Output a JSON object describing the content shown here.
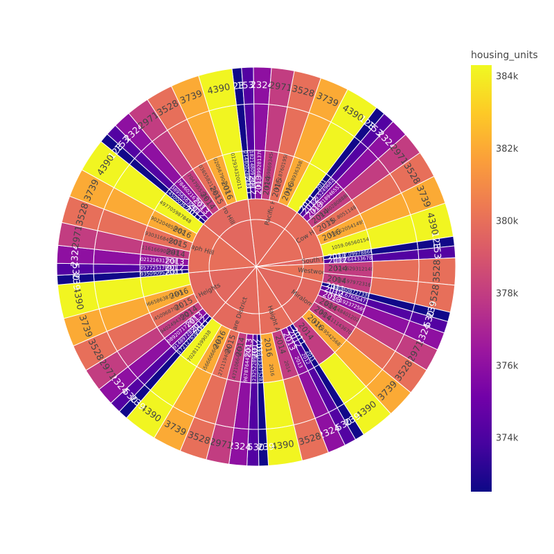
{
  "chart_data": {
    "type": "sunburst",
    "colorbar": {
      "title": "housing_units",
      "range": [
        372500,
        384300
      ],
      "ticks": [
        {
          "value": 374000,
          "label": "374k"
        },
        {
          "value": 376000,
          "label": "376k"
        },
        {
          "value": 378000,
          "label": "378k"
        },
        {
          "value": 380000,
          "label": "380k"
        },
        {
          "value": 382000,
          "label": "382k"
        },
        {
          "value": 384000,
          "label": "384k"
        }
      ],
      "colorscale": [
        "#0d0887",
        "#46039f",
        "#7201a8",
        "#9c179e",
        "#bd3786",
        "#d8576b",
        "#ed7953",
        "#fb9f3a",
        "#fdca26",
        "#f0f921"
      ]
    },
    "year_colors": {
      "2011": 372600,
      "2012": 374200,
      "2013": 376000,
      "2014": 378000,
      "2015": 380000,
      "2016": 382000,
      "extra": 384200
    },
    "outer_pattern": [
      {
        "label": "1239",
        "value": 1239,
        "color_value": 372600
      },
      {
        "label": "1530",
        "value": 1530,
        "color_value": 374200
      },
      {
        "label": "2324",
        "value": 2324,
        "color_value": 376000
      },
      {
        "label": "2971",
        "value": 2971,
        "color_value": 378000
      },
      {
        "label": "3528",
        "value": 3528,
        "color_value": 380000
      },
      {
        "label": "3739",
        "value": 3739,
        "color_value": 382000
      },
      {
        "label": "4390",
        "value": 4390,
        "color_value": 384200
      }
    ],
    "neighborhoods": [
      {
        "name": "Pacific Heights",
        "color_value": 379800,
        "outer": [
          1239,
          1530,
          2324,
          2971,
          3528,
          3739,
          4390
        ],
        "years": [
          {
            "year": "2011",
            "label": "509.0214800288178"
          },
          {
            "year": "2012",
            "label": "586.2182148097696"
          },
          {
            "year": "2013",
            "label": "803.8992813700536"
          },
          {
            "year": "2014",
            "label": "824.6986934548588"
          },
          {
            "year": "2015",
            "label": "918.1876019585808"
          },
          {
            "year": "2016",
            "label": "996.3893635836052"
          },
          {
            "year": "extra",
            "label": ""
          }
        ]
      },
      {
        "name": "Cow Hollow",
        "color_value": 379900,
        "outer": [
          1239,
          1530,
          2324,
          2971,
          3528,
          3739,
          4390
        ],
        "years": [
          {
            "year": "2011",
            "label": "2011"
          },
          {
            "year": "2012",
            "label": "559.5249682383"
          },
          {
            "year": "2013",
            "label": "644.8189465539862"
          },
          {
            "year": "2014",
            "label": "707.4028088882038"
          },
          {
            "year": "2015",
            "label": "791.8051148345"
          },
          {
            "year": "2016",
            "label": "598.6205414959003"
          },
          {
            "year": "extra",
            "label": "1059.0656015402618"
          }
        ]
      },
      {
        "name": "South Beach",
        "color_value": 379600,
        "outer": [
          1239,
          1530
        ],
        "years": [
          {
            "year": "2011",
            "label": "1037.099788667895"
          },
          {
            "year": "2012",
            "label": "1388.6443367815386"
          }
        ]
      },
      {
        "name": "Westwood Park",
        "color_value": 380100,
        "outer": [
          3528,
          3528
        ],
        "years": [
          {
            "year": "2014",
            "label": "524.6293121403000"
          },
          {
            "year": "2014",
            "label": "842.979723163261"
          }
        ]
      },
      {
        "name": "Miraloma Park",
        "color_value": 379700,
        "outer": [
          1239,
          1530,
          2324,
          2971,
          3528,
          3739,
          4390
        ],
        "years": [
          {
            "year": "2011",
            "label": "680.6087273390205"
          },
          {
            "year": "2012",
            "label": "414.67606477609"
          },
          {
            "year": "2013",
            "label": "756.1923725699497"
          },
          {
            "year": "2014",
            "label": "1092.4840120233851"
          },
          {
            "year": "2014",
            "label": "3421.1114367005002"
          },
          {
            "year": "2016",
            "label": "631.1954256872409"
          },
          {
            "year": "2014",
            "label": ""
          }
        ]
      },
      {
        "name": "Haight Ashbury",
        "color_value": 379900,
        "outer": [
          1239,
          1530,
          2324,
          3528,
          4390
        ],
        "years": [
          {
            "year": "2011",
            "label": "2011"
          },
          {
            "year": "2012",
            "label": "2012"
          },
          {
            "year": "2013",
            "label": "2013"
          },
          {
            "year": "2014",
            "label": "2014"
          },
          {
            "year": "2016",
            "label": "2016"
          }
        ]
      },
      {
        "name": "Union Square District",
        "color_value": 379800,
        "outer": [
          1239,
          1530,
          2324,
          2971,
          3528,
          3739,
          4390
        ],
        "years": [
          {
            "year": "2011",
            "label": "569.1934752837735"
          },
          {
            "year": "2012",
            "label": "302.123252289869"
          },
          {
            "year": "2013",
            "label": "445.1967876447930"
          },
          {
            "year": "2014",
            "label": "1290.47210664664"
          },
          {
            "year": "2015",
            "label": "559.2711194006"
          },
          {
            "year": "2016",
            "label": "1416.6566666666667"
          },
          {
            "year": "extra",
            "label": "2258.702811599038"
          }
        ]
      },
      {
        "name": "Presidio Heights",
        "color_value": 379700,
        "outer": [
          1239,
          1530,
          2324,
          2971,
          3528,
          3739,
          4390
        ],
        "years": [
          {
            "year": "2011",
            "label": "549.4172127656734"
          },
          {
            "year": "2012",
            "label": "393.91489728581"
          },
          {
            "year": "2013",
            "label": "436.6089207171787"
          },
          {
            "year": "2014",
            "label": "612.94024943582"
          },
          {
            "year": "2015",
            "label": "933.4509687985"
          },
          {
            "year": "2016",
            "label": "1465.9665863874345"
          },
          {
            "year": "extra",
            "label": ""
          }
        ]
      },
      {
        "name": "Telegraph Hill",
        "color_value": 380000,
        "outer": [
          1239,
          1530,
          2324,
          2971,
          3528,
          3739,
          4390
        ],
        "years": [
          {
            "year": "2011",
            "label": "524.7935090952630"
          },
          {
            "year": "2012",
            "label": "483.4057725178001"
          },
          {
            "year": "2013",
            "label": "465.8021216317738"
          },
          {
            "year": "2014",
            "label": "653.3116166908643"
          },
          {
            "year": "2015",
            "label": "708.1930316849231"
          },
          {
            "year": "2016",
            "label": "996.9902204858652"
          },
          {
            "year": "extra",
            "label": "903.0497705987848"
          }
        ]
      },
      {
        "name": "Potrero Hill",
        "color_value": 379700,
        "outer": [
          1239,
          1530,
          2324,
          2971,
          3528,
          3739,
          4390
        ],
        "years": [
          {
            "year": "2011",
            "label": "491.4500036761"
          },
          {
            "year": "2012",
            "label": "503.1389565630481"
          },
          {
            "year": "2013",
            "label": "466.6784602167713"
          },
          {
            "year": "2014",
            "label": "598.7047955289"
          },
          {
            "year": "2015",
            "label": "665.2036558212962"
          },
          {
            "year": "2016",
            "label": "821.3020567904373"
          },
          {
            "year": "extra",
            "label": "707.6012934320011"
          }
        ]
      }
    ]
  }
}
